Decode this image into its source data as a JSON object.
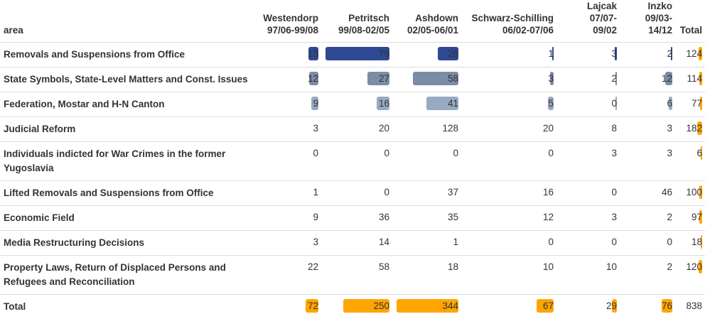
{
  "chart_data": {
    "type": "table",
    "header": {
      "area": "area",
      "columns": [
        {
          "name": "Westendorp",
          "dates": "97/06-99/08"
        },
        {
          "name": "Petritsch",
          "dates": "99/08-02/05"
        },
        {
          "name": "Ashdown",
          "dates": "02/05-06/01"
        },
        {
          "name": "Schwarz-Schilling",
          "dates": "06/02-07/06"
        },
        {
          "name": "Lajcak",
          "dates": "07/07-\n09/02"
        },
        {
          "name": "Inzko",
          "dates": "09/03-\n14/12"
        },
        {
          "name": "Total",
          "dates": ""
        }
      ]
    },
    "rows": [
      {
        "area": "Removals and Suspensions from Office",
        "values": [
          13,
          79,
          26,
          1,
          3,
          2
        ],
        "total": 124
      },
      {
        "area": "State Symbols, State-Level Matters and Const. Issues",
        "values": [
          12,
          27,
          58,
          3,
          2,
          12
        ],
        "total": 114
      },
      {
        "area": "Federation, Mostar and H-N Canton",
        "values": [
          9,
          16,
          41,
          5,
          0,
          6
        ],
        "total": 77
      },
      {
        "area": "Judicial Reform",
        "values": [
          3,
          20,
          128,
          20,
          8,
          3
        ],
        "total": 182
      },
      {
        "area": "Individuals indicted for War Crimes in the former Yugoslavia",
        "values": [
          0,
          0,
          0,
          0,
          3,
          3
        ],
        "total": 6
      },
      {
        "area": "Lifted Removals and Suspensions from Office",
        "values": [
          1,
          0,
          37,
          16,
          0,
          46
        ],
        "total": 100
      },
      {
        "area": "Economic Field",
        "values": [
          9,
          36,
          35,
          12,
          3,
          2
        ],
        "total": 97
      },
      {
        "area": "Media Restructuring Decisions",
        "values": [
          3,
          14,
          1,
          0,
          0,
          0
        ],
        "total": 18
      },
      {
        "area": "Property Laws, Return of Displaced Persons and Refugees and Reconciliation",
        "values": [
          22,
          58,
          18,
          10,
          10,
          2
        ],
        "total": 120
      }
    ],
    "total_row": {
      "label": "Total",
      "values": [
        72,
        250,
        344,
        67,
        29,
        76
      ],
      "total": 838
    },
    "highlight": {
      "row_color": "#2e4a94",
      "row_values_on_bars": [
        13,
        79,
        26,
        1,
        3,
        2
      ],
      "shaded_rows": [
        {
          "row": 0,
          "color": "#2e4a94"
        },
        {
          "row": 1,
          "color": "#7b8ca5"
        },
        {
          "row": 2,
          "color": "#97aac1"
        }
      ]
    },
    "colors": {
      "totals_bar": "#ffa500",
      "row0_bar": "#2e4a94",
      "row1_bar": "#7b8ca5",
      "row2_bar": "#97aac1",
      "grid_line": "#dddddd"
    },
    "xlabel": "",
    "ylabel": ""
  }
}
